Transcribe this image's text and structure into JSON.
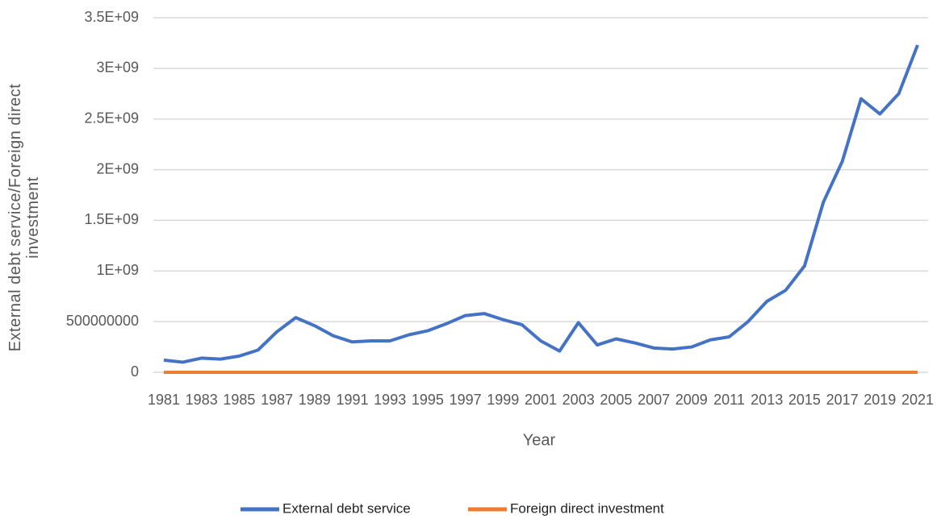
{
  "chart_data": {
    "type": "line",
    "x": [
      1981,
      1982,
      1983,
      1984,
      1985,
      1986,
      1987,
      1988,
      1989,
      1990,
      1991,
      1992,
      1993,
      1994,
      1995,
      1996,
      1997,
      1998,
      1999,
      2000,
      2001,
      2002,
      2003,
      2004,
      2005,
      2006,
      2007,
      2008,
      2009,
      2010,
      2011,
      2012,
      2013,
      2014,
      2015,
      2016,
      2017,
      2018,
      2019,
      2020,
      2021
    ],
    "xlim": [
      1981,
      2021
    ],
    "xticks": [
      1981,
      1983,
      1985,
      1987,
      1989,
      1991,
      1993,
      1995,
      1997,
      1999,
      2001,
      2003,
      2005,
      2007,
      2009,
      2011,
      2013,
      2015,
      2017,
      2019,
      2021
    ],
    "xlabel": "Year",
    "ylabel": "External debt service/Foreign direct investment",
    "ylim": [
      0,
      3500000000
    ],
    "yticks": [
      0,
      500000000,
      {
        "value": 1000000000,
        "label": "1E+09"
      },
      {
        "value": 1500000000,
        "label": "1.5E+09"
      },
      {
        "value": 2000000000,
        "label": "2E+09"
      },
      {
        "value": 2500000000,
        "label": "2.5E+09"
      },
      {
        "value": 3000000000,
        "label": "3E+09"
      },
      {
        "value": 3500000000,
        "label": "3.5E+09"
      }
    ],
    "grid": true,
    "legend": "bottom",
    "series": [
      {
        "name": "External debt service",
        "color": "#4472c4",
        "values": [
          120000000,
          100000000,
          140000000,
          130000000,
          160000000,
          220000000,
          400000000,
          540000000,
          460000000,
          360000000,
          300000000,
          310000000,
          310000000,
          370000000,
          410000000,
          480000000,
          560000000,
          580000000,
          520000000,
          470000000,
          310000000,
          210000000,
          490000000,
          270000000,
          330000000,
          290000000,
          240000000,
          230000000,
          250000000,
          320000000,
          350000000,
          500000000,
          700000000,
          810000000,
          1050000000,
          1680000000,
          2080000000,
          2700000000,
          2550000000,
          2750000000,
          3230000000
        ]
      },
      {
        "name": "Foreign direct investment",
        "color": "#ed7d31",
        "values": [
          0,
          0,
          0,
          0,
          0,
          0,
          0,
          0,
          0,
          0,
          0,
          0,
          0,
          0,
          0,
          0,
          0,
          0,
          0,
          0,
          0,
          0,
          0,
          0,
          0,
          0,
          0,
          0,
          0,
          0,
          0,
          0,
          0,
          0,
          0,
          0,
          0,
          0,
          0,
          0,
          0
        ]
      }
    ]
  }
}
